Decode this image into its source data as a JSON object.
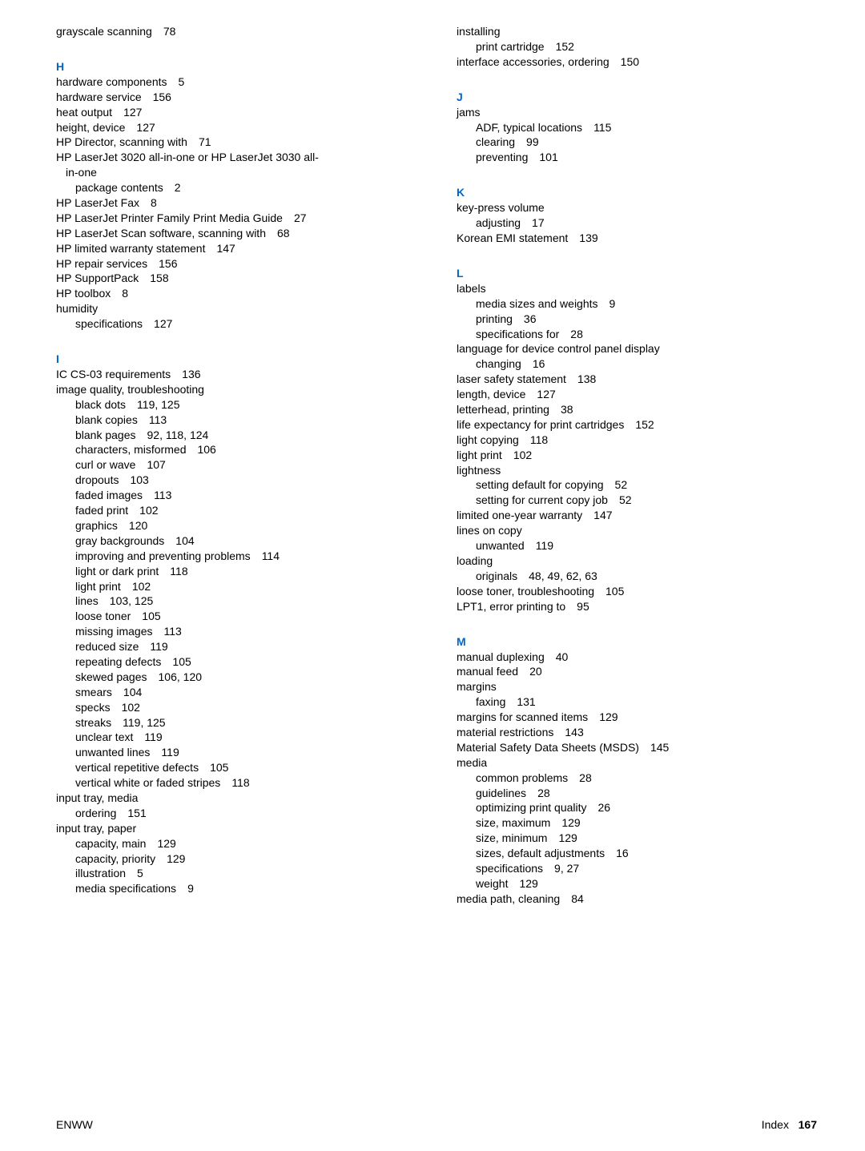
{
  "footer": {
    "left": "ENWW",
    "rightLabel": "Index",
    "pageNum": "167"
  },
  "left": [
    {
      "t": "entry",
      "text": "grayscale scanning",
      "page": "78"
    },
    {
      "t": "gap"
    },
    {
      "t": "letter",
      "text": "H"
    },
    {
      "t": "entry",
      "text": "hardware components",
      "page": "5"
    },
    {
      "t": "entry",
      "text": "hardware service",
      "page": "156"
    },
    {
      "t": "entry",
      "text": "heat output",
      "page": "127"
    },
    {
      "t": "entry",
      "text": "height, device",
      "page": "127"
    },
    {
      "t": "entry",
      "text": "HP Director, scanning with",
      "page": "71"
    },
    {
      "t": "entry",
      "text": "HP LaserJet 3020 all-in-one or HP LaserJet 3030 all-"
    },
    {
      "t": "entry",
      "text": "  in-one",
      "indent": 1,
      "noIndent": true
    },
    {
      "t": "entry",
      "text": "package contents",
      "page": "2",
      "indent": 1
    },
    {
      "t": "entry",
      "text": "HP LaserJet Fax",
      "page": "8"
    },
    {
      "t": "entry",
      "text": "HP LaserJet Printer Family Print Media Guide",
      "page": "27"
    },
    {
      "t": "entry",
      "text": "HP LaserJet Scan software, scanning with",
      "page": "68"
    },
    {
      "t": "entry",
      "text": "HP limited warranty statement",
      "page": "147"
    },
    {
      "t": "entry",
      "text": "HP repair services",
      "page": "156"
    },
    {
      "t": "entry",
      "text": "HP SupportPack",
      "page": "158"
    },
    {
      "t": "entry",
      "text": "HP toolbox",
      "page": "8"
    },
    {
      "t": "entry",
      "text": "humidity"
    },
    {
      "t": "entry",
      "text": "specifications",
      "page": "127",
      "indent": 1
    },
    {
      "t": "gap"
    },
    {
      "t": "letter",
      "text": "I"
    },
    {
      "t": "entry",
      "text": "IC CS-03 requirements",
      "page": "136"
    },
    {
      "t": "entry",
      "text": "image quality, troubleshooting"
    },
    {
      "t": "entry",
      "text": "black dots",
      "page": "119, 125",
      "indent": 1
    },
    {
      "t": "entry",
      "text": "blank copies",
      "page": "113",
      "indent": 1
    },
    {
      "t": "entry",
      "text": "blank pages",
      "page": "92, 118, 124",
      "indent": 1
    },
    {
      "t": "entry",
      "text": "characters, misformed",
      "page": "106",
      "indent": 1
    },
    {
      "t": "entry",
      "text": "curl or wave",
      "page": "107",
      "indent": 1
    },
    {
      "t": "entry",
      "text": "dropouts",
      "page": "103",
      "indent": 1
    },
    {
      "t": "entry",
      "text": "faded images",
      "page": "113",
      "indent": 1
    },
    {
      "t": "entry",
      "text": "faded print",
      "page": "102",
      "indent": 1
    },
    {
      "t": "entry",
      "text": "graphics",
      "page": "120",
      "indent": 1
    },
    {
      "t": "entry",
      "text": "gray backgrounds",
      "page": "104",
      "indent": 1
    },
    {
      "t": "entry",
      "text": "improving and preventing problems",
      "page": "114",
      "indent": 1
    },
    {
      "t": "entry",
      "text": "light or dark print",
      "page": "118",
      "indent": 1
    },
    {
      "t": "entry",
      "text": "light print",
      "page": "102",
      "indent": 1
    },
    {
      "t": "entry",
      "text": "lines",
      "page": "103, 125",
      "indent": 1
    },
    {
      "t": "entry",
      "text": "loose toner",
      "page": "105",
      "indent": 1
    },
    {
      "t": "entry",
      "text": "missing images",
      "page": "113",
      "indent": 1
    },
    {
      "t": "entry",
      "text": "reduced size",
      "page": "119",
      "indent": 1
    },
    {
      "t": "entry",
      "text": "repeating defects",
      "page": "105",
      "indent": 1
    },
    {
      "t": "entry",
      "text": "skewed pages",
      "page": "106, 120",
      "indent": 1
    },
    {
      "t": "entry",
      "text": "smears",
      "page": "104",
      "indent": 1
    },
    {
      "t": "entry",
      "text": "specks",
      "page": "102",
      "indent": 1
    },
    {
      "t": "entry",
      "text": "streaks",
      "page": "119, 125",
      "indent": 1
    },
    {
      "t": "entry",
      "text": "unclear text",
      "page": "119",
      "indent": 1
    },
    {
      "t": "entry",
      "text": "unwanted lines",
      "page": "119",
      "indent": 1
    },
    {
      "t": "entry",
      "text": "vertical repetitive defects",
      "page": "105",
      "indent": 1
    },
    {
      "t": "entry",
      "text": "vertical white or faded stripes",
      "page": "118",
      "indent": 1
    },
    {
      "t": "entry",
      "text": "input tray, media"
    },
    {
      "t": "entry",
      "text": "ordering",
      "page": "151",
      "indent": 1
    },
    {
      "t": "entry",
      "text": "input tray, paper"
    },
    {
      "t": "entry",
      "text": "capacity, main",
      "page": "129",
      "indent": 1
    },
    {
      "t": "entry",
      "text": "capacity, priority",
      "page": "129",
      "indent": 1
    },
    {
      "t": "entry",
      "text": "illustration",
      "page": "5",
      "indent": 1
    },
    {
      "t": "entry",
      "text": "media specifications",
      "page": "9",
      "indent": 1
    }
  ],
  "right": [
    {
      "t": "entry",
      "text": "installing"
    },
    {
      "t": "entry",
      "text": "print cartridge",
      "page": "152",
      "indent": 1
    },
    {
      "t": "entry",
      "text": "interface accessories, ordering",
      "page": "150"
    },
    {
      "t": "gap"
    },
    {
      "t": "letter",
      "text": "J"
    },
    {
      "t": "entry",
      "text": "jams"
    },
    {
      "t": "entry",
      "text": "ADF, typical locations",
      "page": "115",
      "indent": 1
    },
    {
      "t": "entry",
      "text": "clearing",
      "page": "99",
      "indent": 1
    },
    {
      "t": "entry",
      "text": "preventing",
      "page": "101",
      "indent": 1
    },
    {
      "t": "gap"
    },
    {
      "t": "letter",
      "text": "K"
    },
    {
      "t": "entry",
      "text": "key-press volume"
    },
    {
      "t": "entry",
      "text": "adjusting",
      "page": "17",
      "indent": 1
    },
    {
      "t": "entry",
      "text": "Korean EMI statement",
      "page": "139"
    },
    {
      "t": "gap"
    },
    {
      "t": "letter",
      "text": "L"
    },
    {
      "t": "entry",
      "text": "labels"
    },
    {
      "t": "entry",
      "text": "media sizes and weights",
      "page": "9",
      "indent": 1
    },
    {
      "t": "entry",
      "text": "printing",
      "page": "36",
      "indent": 1
    },
    {
      "t": "entry",
      "text": "specifications for",
      "page": "28",
      "indent": 1
    },
    {
      "t": "entry",
      "text": "language for device control panel display"
    },
    {
      "t": "entry",
      "text": "changing",
      "page": "16",
      "indent": 1
    },
    {
      "t": "entry",
      "text": "laser safety statement",
      "page": "138"
    },
    {
      "t": "entry",
      "text": "length, device",
      "page": "127"
    },
    {
      "t": "entry",
      "text": "letterhead, printing",
      "page": "38"
    },
    {
      "t": "entry",
      "text": "life expectancy for print cartridges",
      "page": "152"
    },
    {
      "t": "entry",
      "text": "light copying",
      "page": "118"
    },
    {
      "t": "entry",
      "text": "light print",
      "page": "102"
    },
    {
      "t": "entry",
      "text": "lightness"
    },
    {
      "t": "entry",
      "text": "setting default for copying",
      "page": "52",
      "indent": 1
    },
    {
      "t": "entry",
      "text": "setting for current copy job",
      "page": "52",
      "indent": 1
    },
    {
      "t": "entry",
      "text": "limited one-year warranty",
      "page": "147"
    },
    {
      "t": "entry",
      "text": "lines on copy"
    },
    {
      "t": "entry",
      "text": "unwanted",
      "page": "119",
      "indent": 1
    },
    {
      "t": "entry",
      "text": "loading"
    },
    {
      "t": "entry",
      "text": "originals",
      "page": "48, 49, 62, 63",
      "indent": 1
    },
    {
      "t": "entry",
      "text": "loose toner, troubleshooting",
      "page": "105"
    },
    {
      "t": "entry",
      "text": "LPT1, error printing to",
      "page": "95"
    },
    {
      "t": "gap"
    },
    {
      "t": "letter",
      "text": "M"
    },
    {
      "t": "entry",
      "text": "manual duplexing",
      "page": "40"
    },
    {
      "t": "entry",
      "text": "manual feed",
      "page": "20"
    },
    {
      "t": "entry",
      "text": "margins"
    },
    {
      "t": "entry",
      "text": "faxing",
      "page": "131",
      "indent": 1
    },
    {
      "t": "entry",
      "text": "margins for scanned items",
      "page": "129"
    },
    {
      "t": "entry",
      "text": "material restrictions",
      "page": "143"
    },
    {
      "t": "entry",
      "text": "Material Safety Data Sheets (MSDS)",
      "page": "145"
    },
    {
      "t": "entry",
      "text": "media"
    },
    {
      "t": "entry",
      "text": "common problems",
      "page": "28",
      "indent": 1
    },
    {
      "t": "entry",
      "text": "guidelines",
      "page": "28",
      "indent": 1
    },
    {
      "t": "entry",
      "text": "optimizing print quality",
      "page": "26",
      "indent": 1
    },
    {
      "t": "entry",
      "text": "size, maximum",
      "page": "129",
      "indent": 1
    },
    {
      "t": "entry",
      "text": "size, minimum",
      "page": "129",
      "indent": 1
    },
    {
      "t": "entry",
      "text": "sizes, default adjustments",
      "page": "16",
      "indent": 1
    },
    {
      "t": "entry",
      "text": "specifications",
      "page": "9, 27",
      "indent": 1
    },
    {
      "t": "entry",
      "text": "weight",
      "page": "129",
      "indent": 1
    },
    {
      "t": "entry",
      "text": "media path, cleaning",
      "page": "84"
    }
  ]
}
